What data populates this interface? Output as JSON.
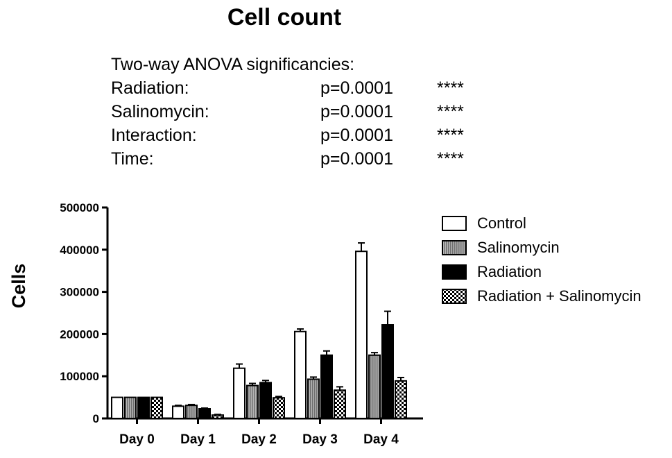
{
  "chart_data": {
    "type": "bar",
    "title": "Cell count",
    "annotation": {
      "heading": "Two-way ANOVA significancies:",
      "rows": [
        {
          "label": "Radiation:",
          "p": "p=0.0001",
          "stars": "****"
        },
        {
          "label": "Salinomycin:",
          "p": "p=0.0001",
          "stars": "****"
        },
        {
          "label": "Interaction:",
          "p": "p=0.0001",
          "stars": "****"
        },
        {
          "label": "Time:",
          "p": "p=0.0001",
          "stars": "****"
        }
      ]
    },
    "ylabel": "Cells",
    "xlabel": "",
    "ylim": [
      0,
      500000
    ],
    "yticks": [
      0,
      100000,
      200000,
      300000,
      400000,
      500000
    ],
    "ytick_labels": [
      "0",
      "100000",
      "200000",
      "300000",
      "400000",
      "500000"
    ],
    "categories": [
      "Day 0",
      "Day 1",
      "Day 2",
      "Day 3",
      "Day 4"
    ],
    "legend_position": "right",
    "series": [
      {
        "name": "Control",
        "fill": "#ffffff",
        "pattern": "solid",
        "values": [
          50000,
          29000,
          119000,
          206000,
          396000
        ],
        "errors": [
          0,
          2000,
          10000,
          6000,
          20000
        ]
      },
      {
        "name": "Salinomycin",
        "fill": "#9a9a9a",
        "pattern": "vertical-stripes",
        "values": [
          50000,
          31000,
          78000,
          93000,
          150000
        ],
        "errors": [
          0,
          2000,
          5000,
          5000,
          6000
        ]
      },
      {
        "name": "Radiation",
        "fill": "#000000",
        "pattern": "solid",
        "values": [
          50000,
          23000,
          85000,
          150000,
          222000
        ],
        "errors": [
          0,
          1500,
          5000,
          10000,
          32000
        ]
      },
      {
        "name": "Radiation + Salinomycin",
        "fill": "#ffffff",
        "pattern": "checker",
        "values": [
          50000,
          8000,
          49000,
          67000,
          89000
        ],
        "errors": [
          0,
          1500,
          3000,
          8000,
          8000
        ]
      }
    ]
  }
}
